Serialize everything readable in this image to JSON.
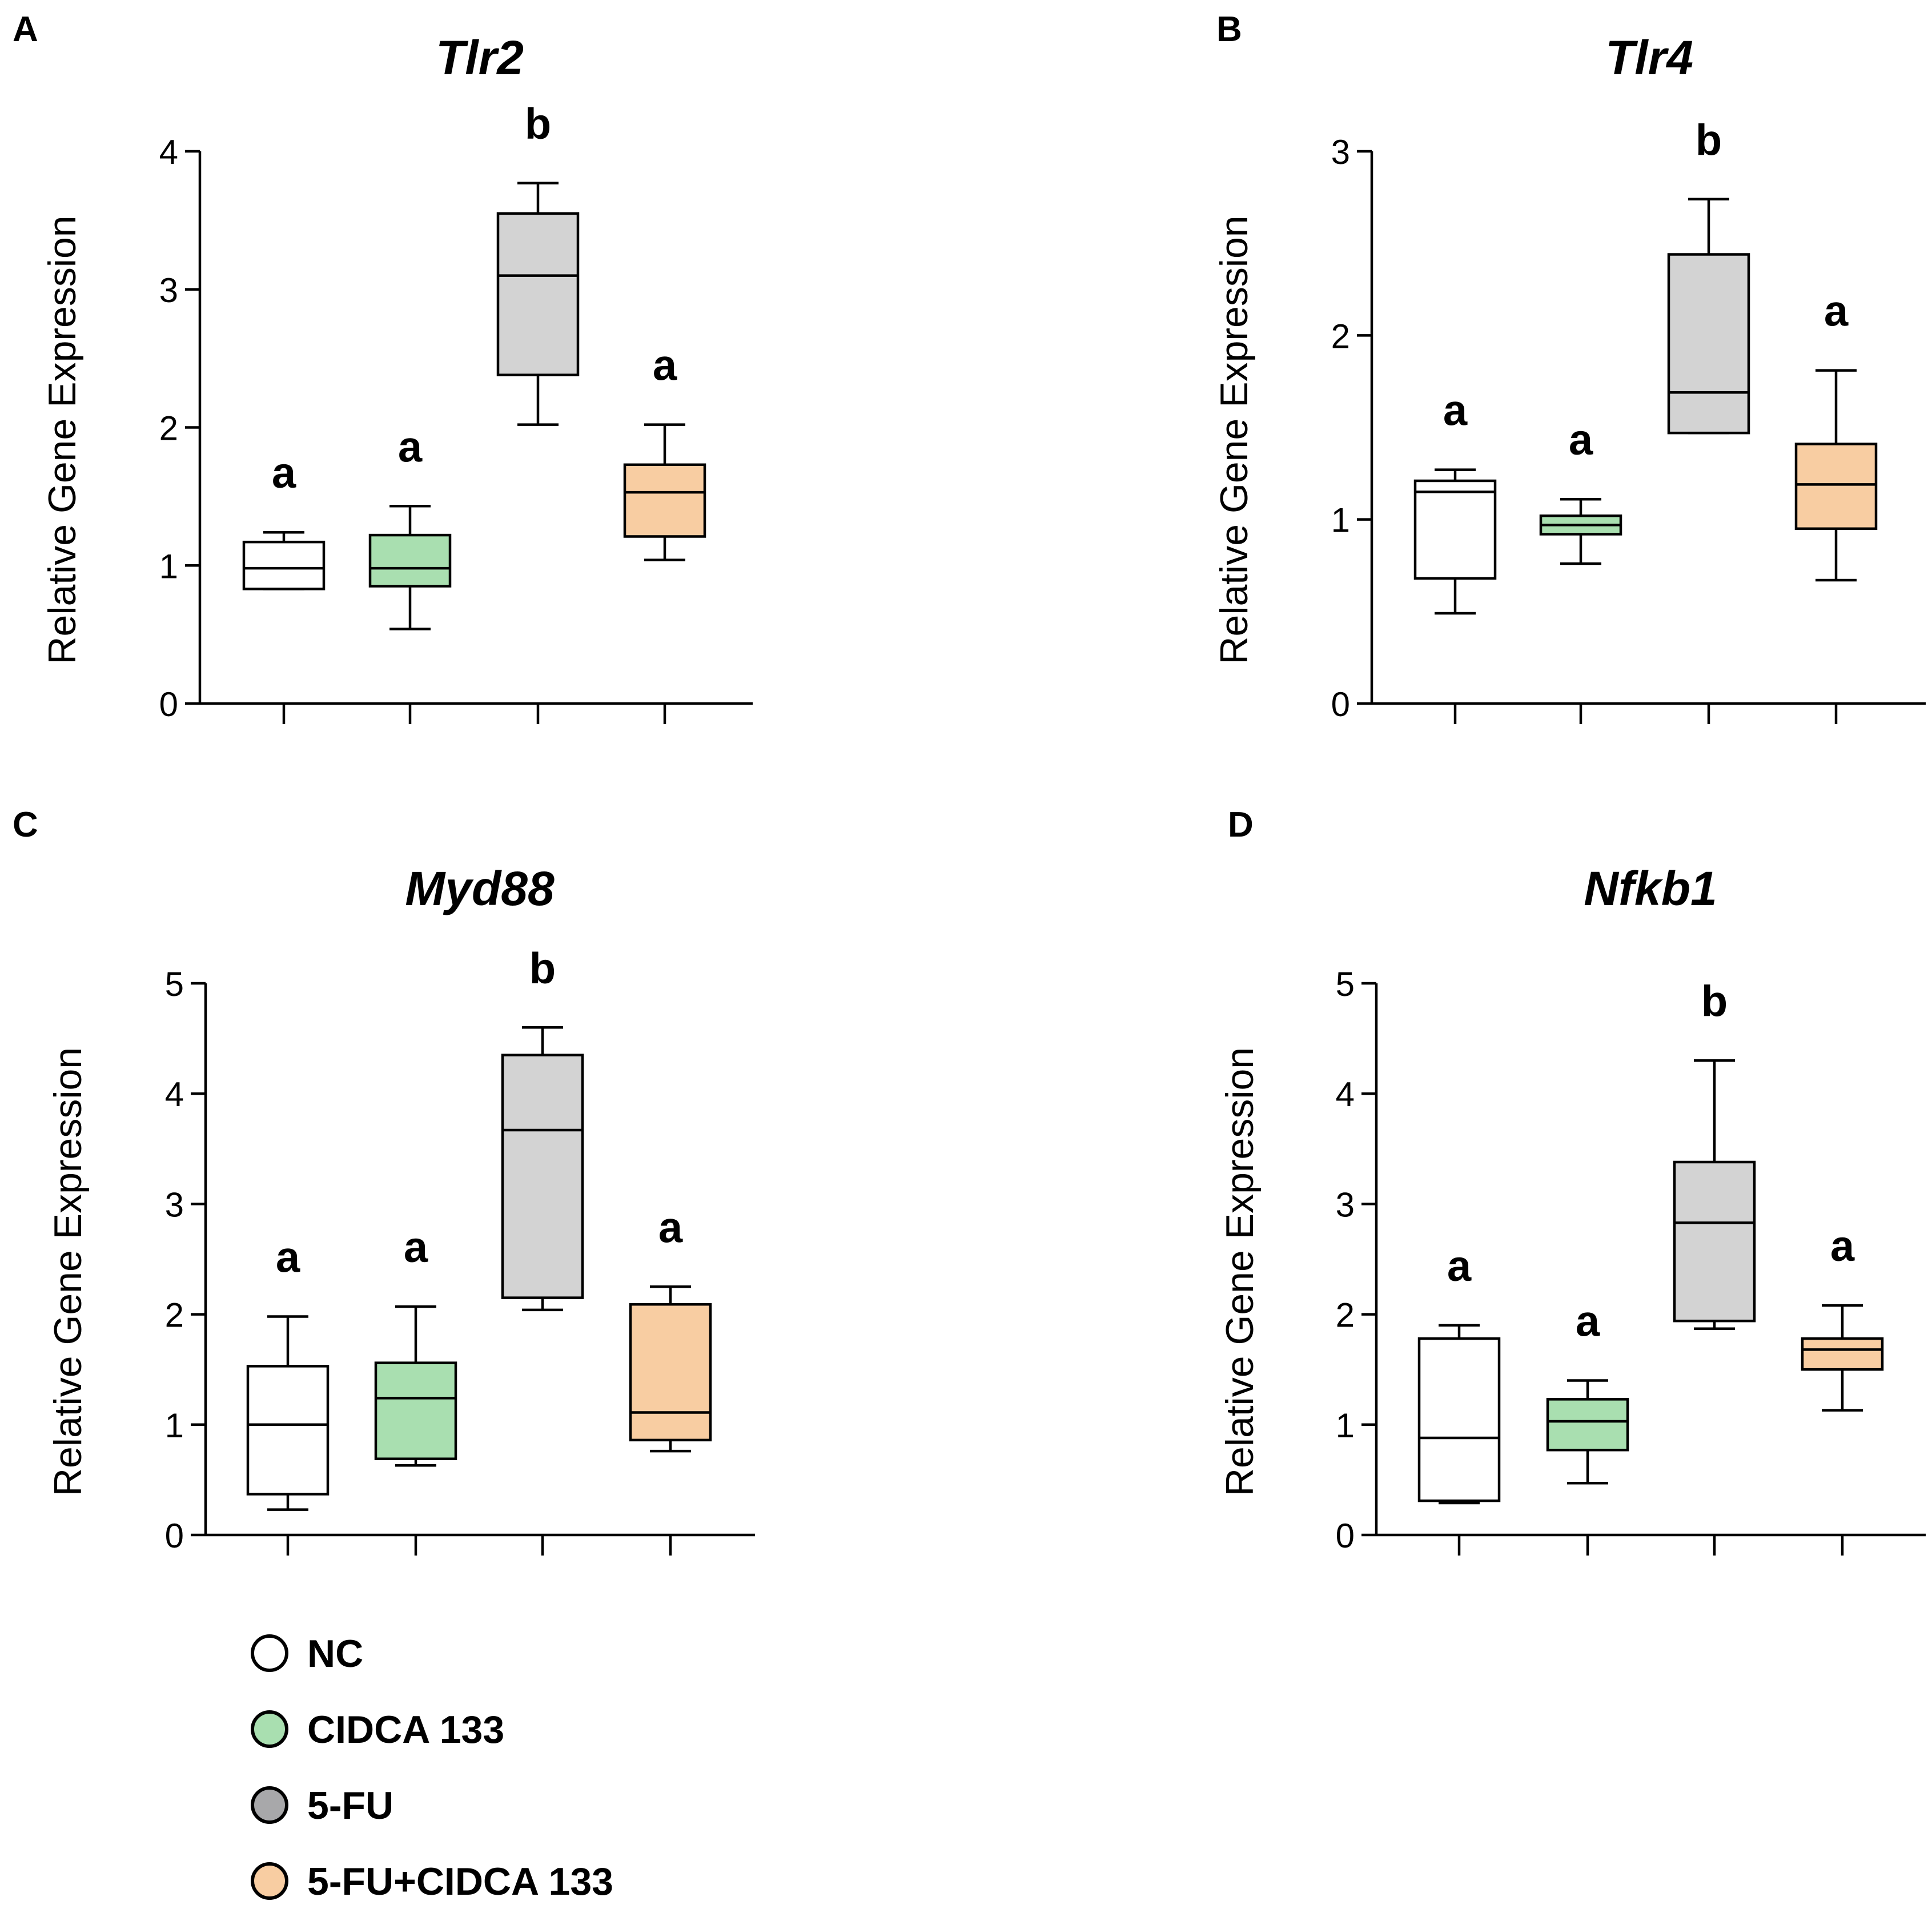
{
  "figure": {
    "legend": [
      {
        "label": "NC",
        "color": "#ffffff"
      },
      {
        "label": "CIDCA 133",
        "color": "#a9dfb0"
      },
      {
        "label": "5-FU",
        "color": "#a8a8aa"
      },
      {
        "label": "5-FU+CIDCA 133",
        "color": "#f8cda2"
      }
    ],
    "colors": {
      "axis": "#000000",
      "box_fill": [
        "#ffffff",
        "#a9dfb0",
        "#d3d3d3",
        "#f8cda2"
      ],
      "box_stroke": "#000000"
    }
  },
  "chart_data": [
    {
      "panel": "A",
      "type": "box",
      "title": "Tlr2",
      "ylabel": "Relative Gene Expression",
      "xlabel": "",
      "ylim": [
        0,
        4
      ],
      "yticks": [
        0,
        1,
        2,
        3,
        4
      ],
      "grid": false,
      "groups": [
        {
          "name": "NC",
          "min": 0.83,
          "q1": 0.83,
          "median": 0.98,
          "q3": 1.17,
          "max": 1.24,
          "letter": "a"
        },
        {
          "name": "CIDCA 133",
          "min": 0.54,
          "q1": 0.85,
          "median": 0.98,
          "q3": 1.22,
          "max": 1.43,
          "letter": "a"
        },
        {
          "name": "5-FU",
          "min": 2.02,
          "q1": 2.38,
          "median": 3.1,
          "q3": 3.55,
          "max": 3.77,
          "letter": "b"
        },
        {
          "name": "5-FU+CIDCA 133",
          "min": 1.04,
          "q1": 1.21,
          "median": 1.53,
          "q3": 1.73,
          "max": 2.02,
          "letter": "a"
        }
      ]
    },
    {
      "panel": "B",
      "type": "box",
      "title": "Tlr4",
      "ylabel": "Relative Gene Expression",
      "xlabel": "",
      "ylim": [
        0,
        3
      ],
      "yticks": [
        0,
        1,
        2,
        3
      ],
      "grid": false,
      "groups": [
        {
          "name": "NC",
          "min": 0.49,
          "q1": 0.68,
          "median": 1.15,
          "q3": 1.21,
          "max": 1.27,
          "letter": "a"
        },
        {
          "name": "CIDCA 133",
          "min": 0.76,
          "q1": 0.92,
          "median": 0.97,
          "q3": 1.02,
          "max": 1.11,
          "letter": "a"
        },
        {
          "name": "5-FU",
          "min": 1.47,
          "q1": 1.47,
          "median": 1.69,
          "q3": 2.44,
          "max": 2.74,
          "letter": "b"
        },
        {
          "name": "5-FU+CIDCA 133",
          "min": 0.67,
          "q1": 0.95,
          "median": 1.19,
          "q3": 1.41,
          "max": 1.81,
          "letter": "a"
        }
      ]
    },
    {
      "panel": "C",
      "type": "box",
      "title": "Myd88",
      "ylabel": "Relative Gene Expression",
      "xlabel": "",
      "ylim": [
        0,
        5
      ],
      "yticks": [
        0,
        1,
        2,
        3,
        4,
        5
      ],
      "grid": false,
      "groups": [
        {
          "name": "NC",
          "min": 0.23,
          "q1": 0.37,
          "median": 1.0,
          "q3": 1.53,
          "max": 1.98,
          "letter": "a"
        },
        {
          "name": "CIDCA 133",
          "min": 0.63,
          "q1": 0.69,
          "median": 1.24,
          "q3": 1.56,
          "max": 2.07,
          "letter": "a"
        },
        {
          "name": "5-FU",
          "min": 2.04,
          "q1": 2.15,
          "median": 3.67,
          "q3": 4.35,
          "max": 4.6,
          "letter": "b"
        },
        {
          "name": "5-FU+CIDCA 133",
          "min": 0.76,
          "q1": 0.86,
          "median": 1.11,
          "q3": 2.09,
          "max": 2.25,
          "letter": "a"
        }
      ]
    },
    {
      "panel": "D",
      "type": "box",
      "title": "Nfkb1",
      "ylabel": "Relative Gene Expression",
      "xlabel": "",
      "ylim": [
        0,
        5
      ],
      "yticks": [
        0,
        1,
        2,
        3,
        4,
        5
      ],
      "grid": false,
      "groups": [
        {
          "name": "NC",
          "min": 0.29,
          "q1": 0.31,
          "median": 0.88,
          "q3": 1.78,
          "max": 1.9,
          "letter": "a"
        },
        {
          "name": "CIDCA 133",
          "min": 0.47,
          "q1": 0.77,
          "median": 1.03,
          "q3": 1.23,
          "max": 1.4,
          "letter": "a"
        },
        {
          "name": "5-FU",
          "min": 1.87,
          "q1": 1.94,
          "median": 2.83,
          "q3": 3.38,
          "max": 4.3,
          "letter": "b"
        },
        {
          "name": "5-FU+CIDCA 133",
          "min": 1.13,
          "q1": 1.5,
          "median": 1.68,
          "q3": 1.78,
          "max": 2.08,
          "letter": "a"
        }
      ]
    }
  ]
}
